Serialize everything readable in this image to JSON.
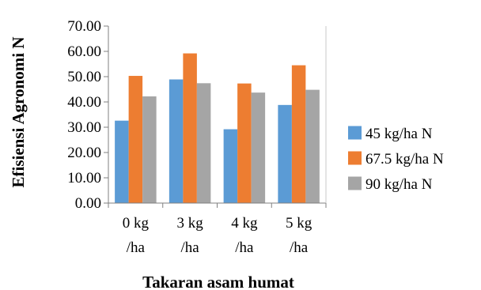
{
  "chart_data": {
    "type": "bar",
    "title": "",
    "xlabel": "Takaran asam humat",
    "ylabel": "Efisiensi Agronomi N",
    "categories": [
      [
        "0 kg",
        "/ha"
      ],
      [
        "3 kg",
        "/ha"
      ],
      [
        "4 kg",
        "/ha"
      ],
      [
        "5 kg",
        "/ha"
      ]
    ],
    "series": [
      {
        "name": "45 kg/ha N",
        "values": [
          32.6,
          48.9,
          29.2,
          38.8
        ],
        "color": "#5b9bd5"
      },
      {
        "name": "67.5 kg/ha N",
        "values": [
          50.3,
          59.2,
          47.3,
          54.5
        ],
        "color": "#ed7d31"
      },
      {
        "name": "90 kg/ha N",
        "values": [
          42.2,
          47.4,
          43.7,
          44.8
        ],
        "color": "#a5a5a5"
      }
    ],
    "ylim": [
      0,
      70
    ],
    "yticks": [
      "0.00",
      "10.00",
      "20.00",
      "30.00",
      "40.00",
      "50.00",
      "60.00",
      "70.00"
    ],
    "grid": false,
    "legend_position": "right"
  }
}
